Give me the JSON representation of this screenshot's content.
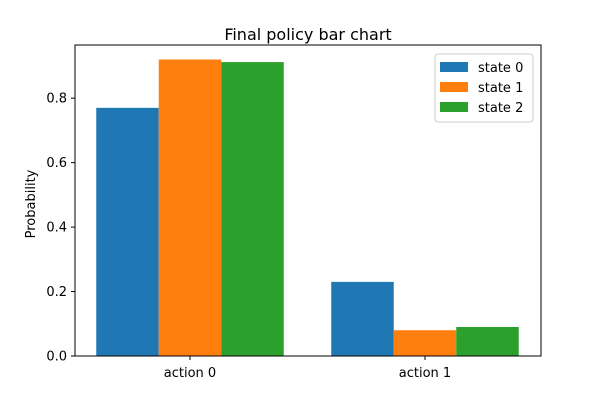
{
  "chart_data": {
    "type": "bar",
    "title": "Final policy bar chart",
    "xlabel": "",
    "ylabel": "Probability",
    "categories": [
      "action 0",
      "action 1"
    ],
    "series": [
      {
        "name": "state 0",
        "color": "#1f77b4",
        "values": [
          0.77,
          0.23
        ]
      },
      {
        "name": "state 1",
        "color": "#ff7f0e",
        "values": [
          0.92,
          0.08
        ]
      },
      {
        "name": "state 2",
        "color": "#2ca02c",
        "values": [
          0.912,
          0.09
        ]
      }
    ],
    "ylim": [
      0,
      0.965
    ],
    "yticks": [
      0.0,
      0.2,
      0.4,
      0.6,
      0.8
    ],
    "ytick_labels": [
      "0.0",
      "0.2",
      "0.4",
      "0.6",
      "0.8"
    ],
    "legend_position": "top-right",
    "grid": false
  }
}
